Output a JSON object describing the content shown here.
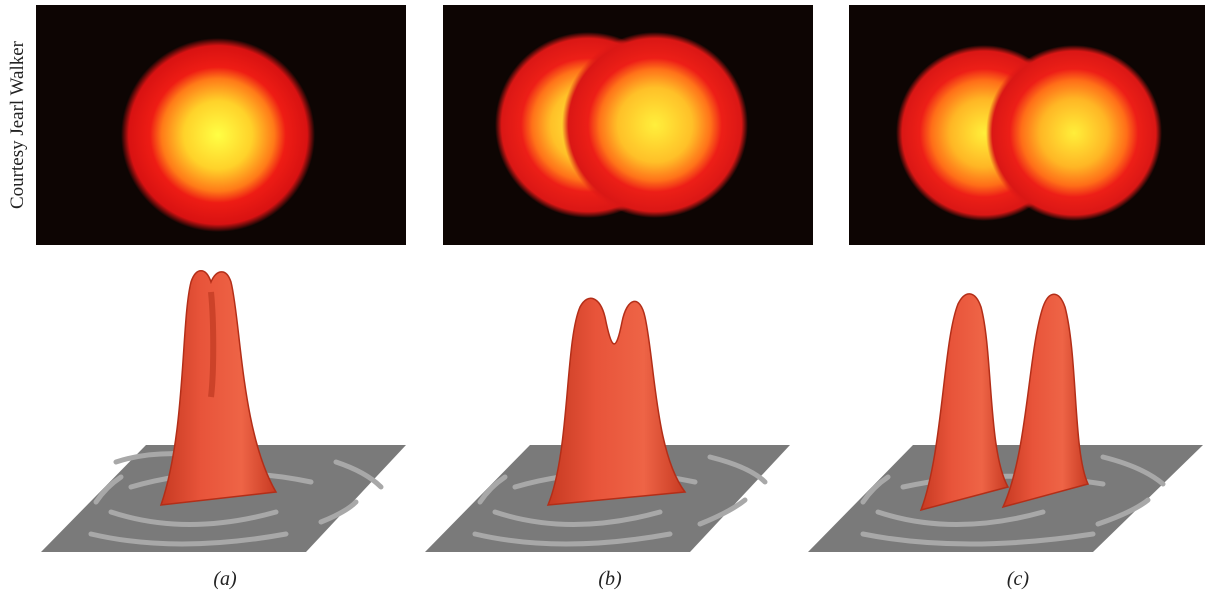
{
  "credit": "Courtesy Jearl Walker",
  "panels": [
    {
      "id": "a",
      "caption": "(a)"
    },
    {
      "id": "b",
      "caption": "(b)"
    },
    {
      "id": "c",
      "caption": "(c)"
    }
  ],
  "colors": {
    "glow_core": "#ffff33",
    "glow_mid": "#ff9a1a",
    "glow_edge": "#e81515",
    "photo_background": "#0d0503",
    "peak_fill": "#e8543a",
    "peak_shadow": "#c73a22",
    "base_plane": "#7a7a7a",
    "ring_groove": "#a8a8a8"
  }
}
